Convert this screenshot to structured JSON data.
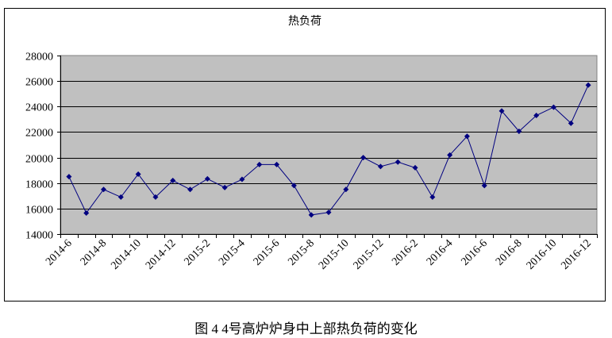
{
  "chart_data": {
    "type": "line",
    "title": "热负荷",
    "caption": "图 4  4号高炉炉身中上部热负荷的变化",
    "xlabel": "",
    "ylabel": "",
    "ylim": [
      14000,
      28000
    ],
    "yticks": [
      14000,
      16000,
      18000,
      20000,
      22000,
      24000,
      26000,
      28000
    ],
    "grid": true,
    "legend": "none",
    "plot_background": "#C0C0C0",
    "line_color": "#000080",
    "categories": [
      "2014-6",
      "2014-7",
      "2014-8",
      "2014-9",
      "2014-10",
      "2014-11",
      "2014-12",
      "2015-1",
      "2015-2",
      "2015-3",
      "2015-4",
      "2015-5",
      "2015-6",
      "2015-7",
      "2015-8",
      "2015-9",
      "2015-10",
      "2015-11",
      "2015-12",
      "2016-1",
      "2016-2",
      "2016-3",
      "2016-4",
      "2016-5",
      "2016-6",
      "2016-7",
      "2016-8",
      "2016-9",
      "2016-10",
      "2016-11",
      "2016-12"
    ],
    "tick_labels": [
      "2014-6",
      "2014-8",
      "2014-10",
      "2014-12",
      "2015-2",
      "2015-4",
      "2015-6",
      "2015-8",
      "2015-10",
      "2015-12",
      "2016-2",
      "2016-4",
      "2016-6",
      "2016-8",
      "2016-10",
      "2016-12"
    ],
    "values": [
      18500,
      15650,
      17500,
      16900,
      18700,
      16900,
      18200,
      17500,
      18330,
      17650,
      18290,
      19450,
      19450,
      17800,
      15500,
      15700,
      17500,
      20000,
      19300,
      19650,
      19200,
      16900,
      20200,
      21670,
      17800,
      23650,
      22060,
      23300,
      23950,
      22690,
      25680
    ]
  }
}
